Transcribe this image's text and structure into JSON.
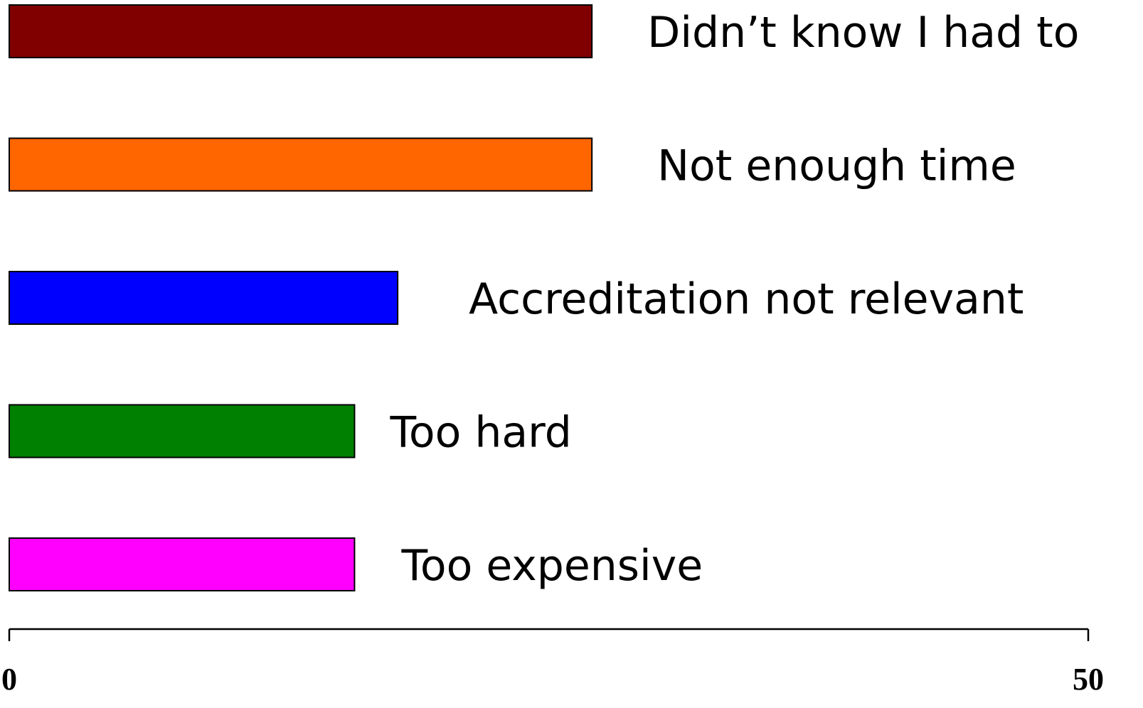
{
  "chart_data": {
    "type": "bar",
    "orientation": "horizontal",
    "categories": [
      "Didn’t know I had to",
      "Not enough time",
      "Accreditation not relevant",
      "Too hard",
      "Too expensive"
    ],
    "values": [
      27,
      27,
      18,
      16,
      16
    ],
    "colors": [
      "#800000",
      "#ff6600",
      "#0000ff",
      "#008000",
      "#ff00ff"
    ],
    "xlim": [
      0,
      50
    ],
    "x_ticks": [
      "0",
      "50"
    ],
    "title": "",
    "xlabel": "",
    "ylabel": "",
    "grid": false,
    "legend": "none",
    "label_placement": "right of bar"
  }
}
